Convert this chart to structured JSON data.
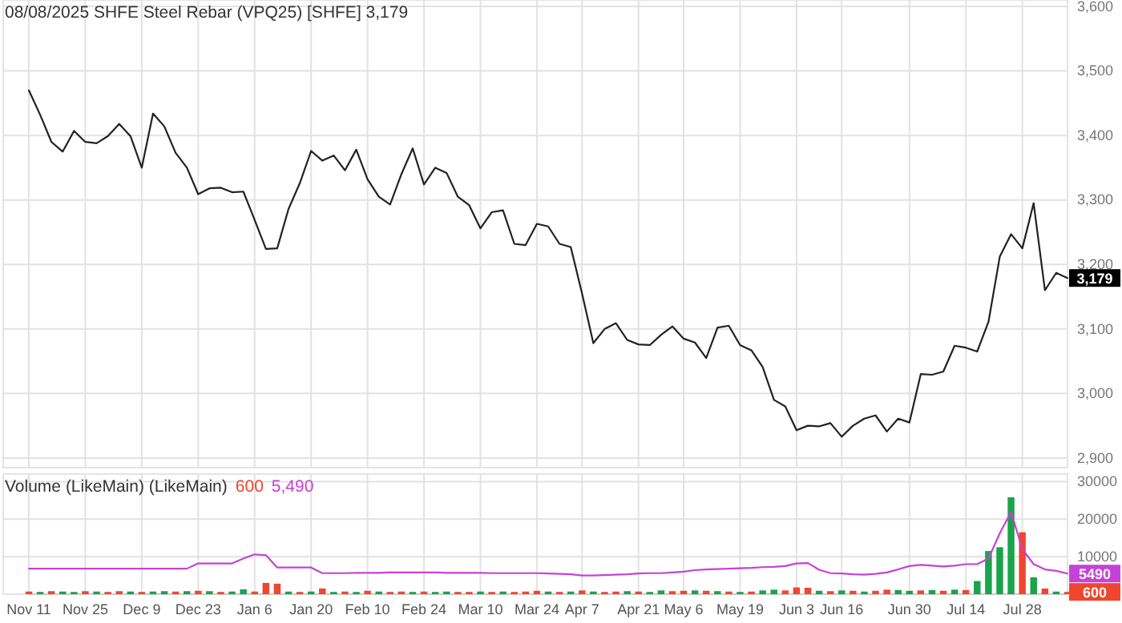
{
  "chart_data": [
    {
      "type": "line",
      "title": "08/08/2025 SHFE Steel Rebar (VPQ25) [SHFE] 3,179",
      "tick_labels": "y",
      "grid": true,
      "color": "#222222",
      "categories": [
        null,
        null,
        null,
        null,
        null,
        null,
        null,
        null,
        null,
        null,
        null,
        null,
        null,
        null,
        null,
        null,
        null,
        null,
        null,
        null,
        null,
        null,
        null,
        null,
        null,
        null,
        null,
        null,
        null,
        null,
        null,
        null,
        null,
        null,
        null,
        null,
        null,
        null,
        null,
        null,
        null,
        null,
        null,
        null,
        null,
        null,
        null,
        null,
        null,
        null,
        null,
        null,
        null,
        null,
        null,
        null,
        null,
        null,
        null,
        null,
        null,
        null,
        null,
        null,
        null,
        null,
        null,
        null,
        null,
        null,
        null,
        null,
        null,
        null,
        null,
        null,
        null,
        null,
        null,
        null,
        null,
        null,
        null,
        null,
        null,
        null,
        null,
        null,
        null,
        null,
        null,
        null,
        null
      ],
      "values": [
        3470,
        3432,
        3390,
        3375,
        3407,
        3390,
        3388,
        3399,
        3418,
        3399,
        3350,
        3434,
        3414,
        3373,
        3350,
        3309,
        3318,
        3319,
        3312,
        3313,
        3269,
        3224,
        3225,
        3286,
        3326,
        3376,
        3361,
        3369,
        3346,
        3378,
        3332,
        3305,
        3293,
        3340,
        3380,
        3324,
        3350,
        3342,
        3305,
        3292,
        3256,
        3281,
        3284,
        3232,
        3230,
        3263,
        3259,
        3232,
        3227,
        3155,
        3078,
        3100,
        3109,
        3083,
        3076,
        3075,
        3091,
        3104,
        3085,
        3079,
        3055,
        3102,
        3105,
        3075,
        3067,
        3041,
        2990,
        2980,
        2943,
        2950,
        2949,
        2954,
        2933,
        2950,
        2961,
        2966,
        2941,
        2961,
        2955,
        3030,
        3029,
        3034,
        3074,
        3071,
        3065,
        3111,
        3212,
        3247,
        3225,
        3295,
        3160,
        3187,
        3179
      ],
      "ylim": [
        2885,
        3610
      ],
      "yticks": [
        {
          "value": 2900,
          "label": "2,900"
        },
        {
          "value": 3000,
          "label": "3,000"
        },
        {
          "value": 3100,
          "label": "3,100"
        },
        {
          "value": 3200,
          "label": "3,200"
        },
        {
          "value": 3300,
          "label": "3,300"
        },
        {
          "value": 3400,
          "label": "3,400"
        },
        {
          "value": 3500,
          "label": "3,500"
        },
        {
          "value": 3600,
          "label": "3,600"
        }
      ],
      "annotations": [
        {
          "text": "3,179",
          "y": 3179
        }
      ]
    },
    {
      "type": "bar",
      "title": "Volume (LikeMain)  (LikeMain)",
      "grid": true,
      "categories": [
        "Nov 11",
        null,
        null,
        null,
        null,
        "Nov 25",
        null,
        null,
        null,
        null,
        "Dec 9",
        null,
        null,
        null,
        null,
        "Dec 23",
        null,
        null,
        null,
        null,
        "Jan 6",
        null,
        null,
        null,
        null,
        "Jan 20",
        null,
        null,
        null,
        null,
        "Feb 10",
        null,
        null,
        null,
        null,
        "Feb 24",
        null,
        null,
        null,
        null,
        "Mar 10",
        null,
        null,
        null,
        null,
        "Mar 24",
        null,
        null,
        null,
        "Apr 7",
        null,
        null,
        null,
        null,
        "Apr 21",
        null,
        null,
        null,
        "May 6",
        null,
        null,
        null,
        null,
        "May 19",
        null,
        null,
        null,
        null,
        "Jun 3",
        null,
        null,
        null,
        "Jun 16",
        null,
        null,
        null,
        null,
        null,
        "Jun 30",
        null,
        null,
        null,
        null,
        "Jul 14",
        null,
        null,
        null,
        null,
        "Jul 28",
        null,
        null,
        null,
        null
      ],
      "series": [
        {
          "values": [
            700,
            600,
            800,
            700,
            600,
            800,
            700,
            600,
            800,
            700,
            600,
            700,
            800,
            700,
            800,
            900,
            800,
            600,
            700,
            1300,
            700,
            3000,
            2800,
            700,
            600,
            700,
            1500,
            600,
            700,
            600,
            900,
            700,
            600,
            700,
            600,
            700,
            600,
            700,
            600,
            600,
            700,
            600,
            700,
            600,
            700,
            900,
            700,
            600,
            700,
            1000,
            700,
            600,
            700,
            800,
            700,
            600,
            1000,
            800,
            900,
            1000,
            900,
            800,
            700,
            600,
            700,
            1000,
            1200,
            1000,
            1800,
            1700,
            900,
            800,
            1000,
            900,
            700,
            900,
            1200,
            1100,
            900,
            1000,
            1100,
            900,
            1200,
            1100,
            3500,
            11500,
            12500,
            25800,
            16500,
            4500,
            1500,
            700,
            600
          ],
          "colors": [
            "#f0462f",
            "#1aa34a",
            "#f0462f",
            "#1aa34a",
            "#1aa34a",
            "#f0462f",
            "#1aa34a",
            "#f0462f",
            "#f0462f",
            "#1aa34a",
            "#f0462f",
            "#1aa34a",
            "#1aa34a",
            "#f0462f",
            "#1aa34a",
            "#f0462f",
            "#1aa34a",
            "#f0462f",
            "#1aa34a",
            "#1aa34a",
            "#f0462f",
            "#f0462f",
            "#f0462f",
            "#1aa34a",
            "#f0462f",
            "#1aa34a",
            "#f0462f",
            "#1aa34a",
            "#f0462f",
            "#1aa34a",
            "#f0462f",
            "#1aa34a",
            "#f0462f",
            "#f0462f",
            "#1aa34a",
            "#f0462f",
            "#1aa34a",
            "#1aa34a",
            "#f0462f",
            "#f0462f",
            "#1aa34a",
            "#f0462f",
            "#1aa34a",
            "#f0462f",
            "#f0462f",
            "#f0462f",
            "#1aa34a",
            "#f0462f",
            "#1aa34a",
            "#f0462f",
            "#1aa34a",
            "#f0462f",
            "#f0462f",
            "#1aa34a",
            "#f0462f",
            "#1aa34a",
            "#1aa34a",
            "#f0462f",
            "#f0462f",
            "#1aa34a",
            "#f0462f",
            "#1aa34a",
            "#f0462f",
            "#1aa34a",
            "#f0462f",
            "#1aa34a",
            "#1aa34a",
            "#f0462f",
            "#f0462f",
            "#f0462f",
            "#1aa34a",
            "#f0462f",
            "#1aa34a",
            "#f0462f",
            "#1aa34a",
            "#f0462f",
            "#f0462f",
            "#1aa34a",
            "#1aa34a",
            "#f0462f",
            "#1aa34a",
            "#f0462f",
            "#1aa34a",
            "#f0462f",
            "#1aa34a",
            "#1aa34a",
            "#1aa34a",
            "#1aa34a",
            "#f0462f",
            "#1aa34a",
            "#f0462f",
            "#1aa34a",
            "#f0462f"
          ]
        },
        {
          "type": "line",
          "color": "#c642d6",
          "values": [
            6800,
            6800,
            6800,
            6800,
            6800,
            6800,
            6800,
            6800,
            6800,
            6800,
            6800,
            6800,
            6800,
            6800,
            6800,
            8200,
            8200,
            8200,
            8200,
            9500,
            10600,
            10400,
            7100,
            7100,
            7100,
            7100,
            5600,
            5600,
            5600,
            5700,
            5700,
            5700,
            5800,
            5800,
            5800,
            5800,
            5800,
            5700,
            5700,
            5700,
            5700,
            5600,
            5600,
            5600,
            5600,
            5600,
            5500,
            5400,
            5300,
            5000,
            5000,
            5100,
            5200,
            5300,
            5500,
            5600,
            5600,
            5800,
            6000,
            6400,
            6600,
            6700,
            6800,
            6900,
            7000,
            7200,
            7300,
            7500,
            8200,
            8300,
            6500,
            5600,
            5500,
            5300,
            5200,
            5400,
            5800,
            6600,
            7500,
            7800,
            7600,
            7400,
            7600,
            8000,
            8000,
            9500,
            16200,
            21900,
            12000,
            8000,
            6600,
            6200,
            5490
          ]
        }
      ],
      "ylim": [
        0,
        32000
      ],
      "yticks": [
        10000,
        20000,
        30000
      ],
      "annotations": [
        "600",
        "5,490",
        {
          "text": "5490",
          "y": 5490
        },
        {
          "text": "600",
          "y": 600
        }
      ]
    }
  ]
}
